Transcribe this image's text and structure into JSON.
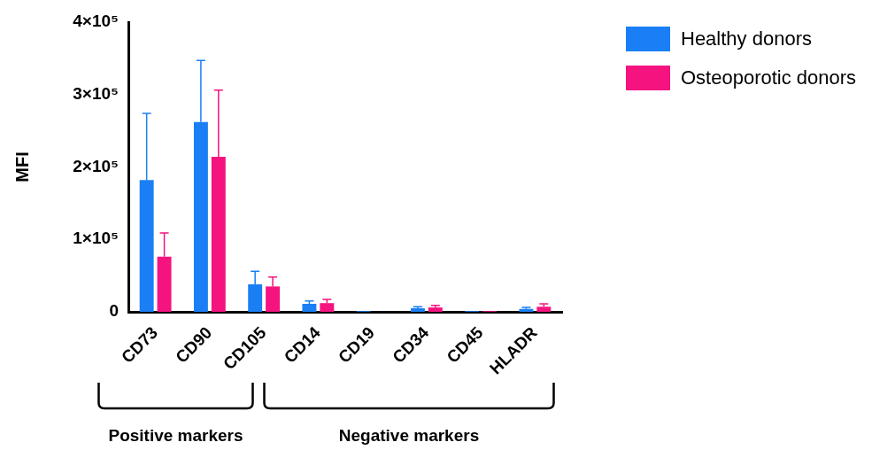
{
  "chart_data": {
    "type": "bar",
    "ylabel": "MFI",
    "categories": [
      "CD73",
      "CD90",
      "CD105",
      "CD14",
      "CD19",
      "CD34",
      "CD45",
      "HLADR"
    ],
    "series": [
      {
        "name": "Healthy donors",
        "color": "#1a7ff5",
        "values": [
          182000,
          262000,
          38000,
          11000,
          1000,
          5000,
          1000,
          4000
        ],
        "errors": [
          92000,
          85000,
          18000,
          4000,
          null,
          2000,
          null,
          2000
        ]
      },
      {
        "name": "Osteoporotic donors",
        "color": "#f5137f",
        "values": [
          76000,
          214000,
          35000,
          12000,
          0,
          6000,
          1000,
          7000
        ],
        "errors": [
          33000,
          92000,
          13000,
          5000,
          null,
          3000,
          null,
          4000
        ]
      }
    ],
    "ylim": [
      0,
      400000
    ],
    "yticks": [
      {
        "value": 0,
        "label": "0"
      },
      {
        "value": 100000,
        "label": "1×10⁵"
      },
      {
        "value": 200000,
        "label": "2×10⁵"
      },
      {
        "value": 300000,
        "label": "3×10⁵"
      },
      {
        "value": 400000,
        "label": "4×10⁵"
      }
    ],
    "grid": false,
    "legend": "top right",
    "annotations": [
      "Positive markers",
      "Negative markers"
    ]
  }
}
